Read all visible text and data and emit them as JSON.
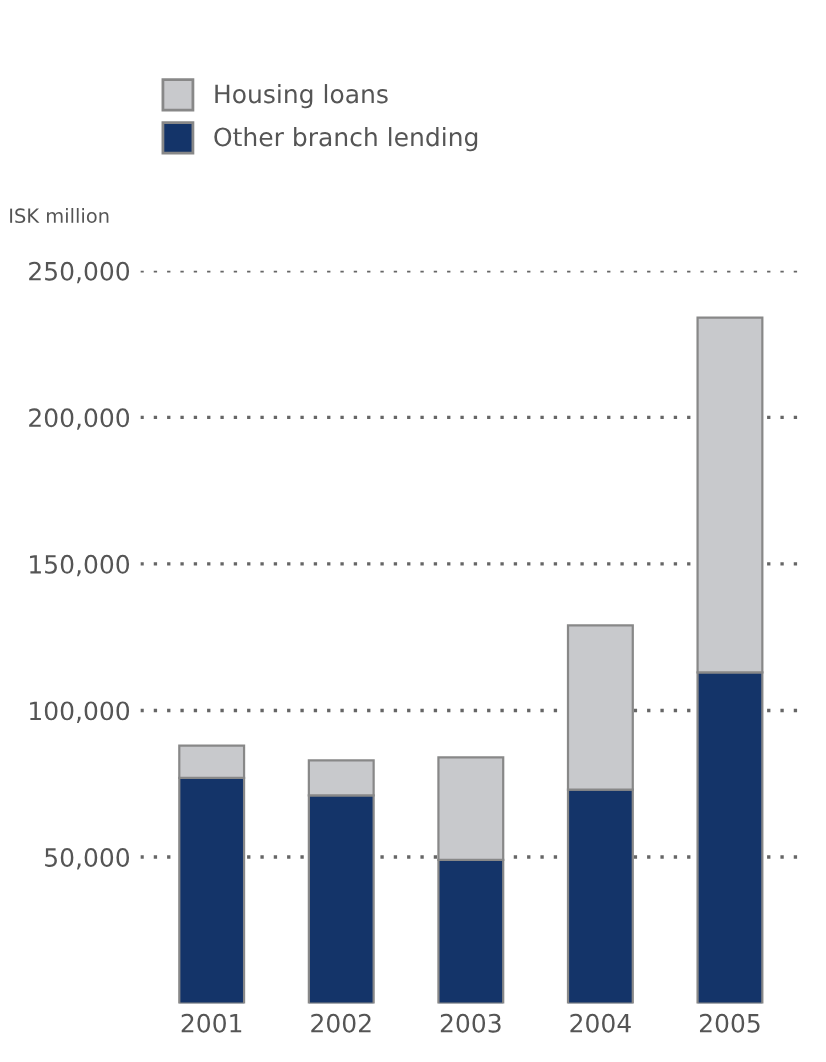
{
  "chart_data": {
    "type": "bar",
    "stacked": true,
    "ylabel": "ISK million",
    "categories": [
      "2001",
      "2002",
      "2003",
      "2004",
      "2005"
    ],
    "series": [
      {
        "name": "Other branch lending",
        "color": "#143469",
        "values": [
          77000,
          71000,
          49000,
          73000,
          113000
        ]
      },
      {
        "name": "Housing loans",
        "color": "#c8c9cc",
        "values": [
          11000,
          12000,
          35000,
          56000,
          121000
        ]
      }
    ],
    "ylim": [
      0,
      250000
    ],
    "yticks": [
      {
        "value": 50000,
        "label": "50,000"
      },
      {
        "value": 100000,
        "label": "100,000"
      },
      {
        "value": 150000,
        "label": "150,000"
      },
      {
        "value": 200000,
        "label": "200,000"
      },
      {
        "value": 250000,
        "label": "250,000"
      }
    ],
    "grid": "y",
    "legend": "top left"
  }
}
